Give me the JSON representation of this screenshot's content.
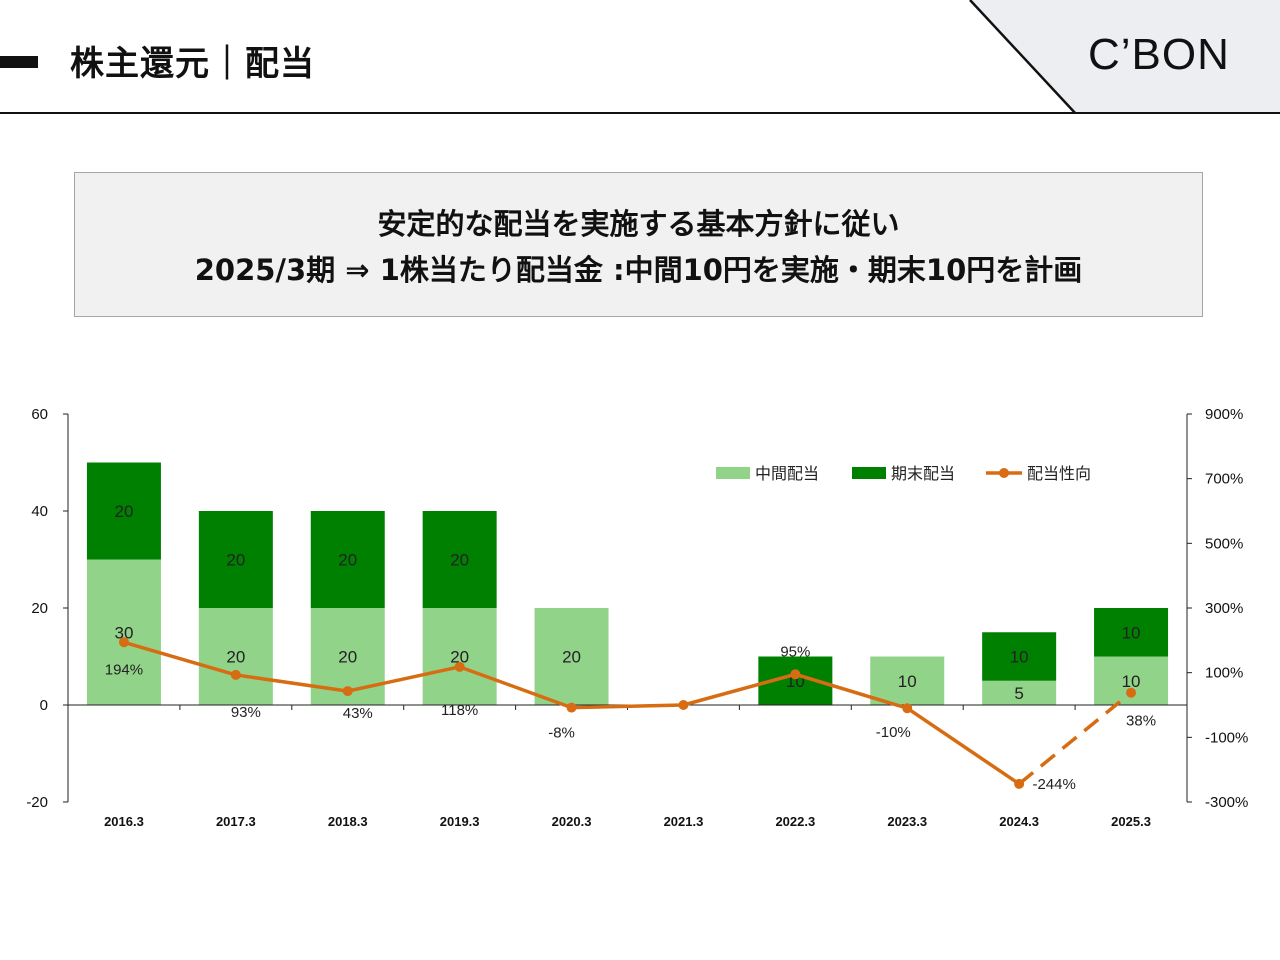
{
  "header": {
    "title": "株主還元｜配当",
    "logo": "C’BON"
  },
  "banner": {
    "line1": "安定的な配当を実施する基本方針に従い",
    "line2": "2025/3期 ⇒ 1株当たり配当金 :中間10円を実施・期末10円を計画"
  },
  "chart_data": {
    "type": "bar",
    "stacked": true,
    "categories": [
      "2016.3",
      "2017.3",
      "2018.3",
      "2019.3",
      "2020.3",
      "2021.3",
      "2022.3",
      "2023.3",
      "2024.3",
      "2025.3"
    ],
    "series": [
      {
        "name": "中間配当",
        "values": [
          30,
          20,
          20,
          20,
          20,
          0,
          0,
          10,
          5,
          10
        ],
        "labels": [
          "30",
          "20",
          "20",
          "20",
          "20",
          "",
          "",
          "10",
          "5",
          "10"
        ],
        "color": "#92d38a"
      },
      {
        "name": "期末配当",
        "values": [
          20,
          20,
          20,
          20,
          0,
          0,
          10,
          0,
          10,
          10
        ],
        "labels": [
          "20",
          "20",
          "20",
          "20",
          "",
          "",
          "10",
          "",
          "10",
          "10"
        ],
        "color": "#008000"
      }
    ],
    "line_series": {
      "name": "配当性向",
      "type": "line",
      "axis": "right",
      "values": [
        194,
        93,
        43,
        118,
        -8,
        0,
        95,
        -10,
        -244,
        38
      ],
      "labels": [
        "194%",
        "93%",
        "43%",
        "118%",
        "-8%",
        "",
        "95%",
        "-10%",
        "-244%",
        "38%"
      ],
      "dashed_from_index": 8,
      "color": "#d86c12"
    },
    "y_left": {
      "min": -20,
      "max": 60,
      "ticks": [
        -20,
        0,
        20,
        40,
        60
      ]
    },
    "y_right": {
      "min": -300,
      "max": 900,
      "ticks": [
        "-300%",
        "-100%",
        "100%",
        "300%",
        "500%",
        "700%",
        "900%"
      ]
    },
    "legend_position": "top-right"
  }
}
